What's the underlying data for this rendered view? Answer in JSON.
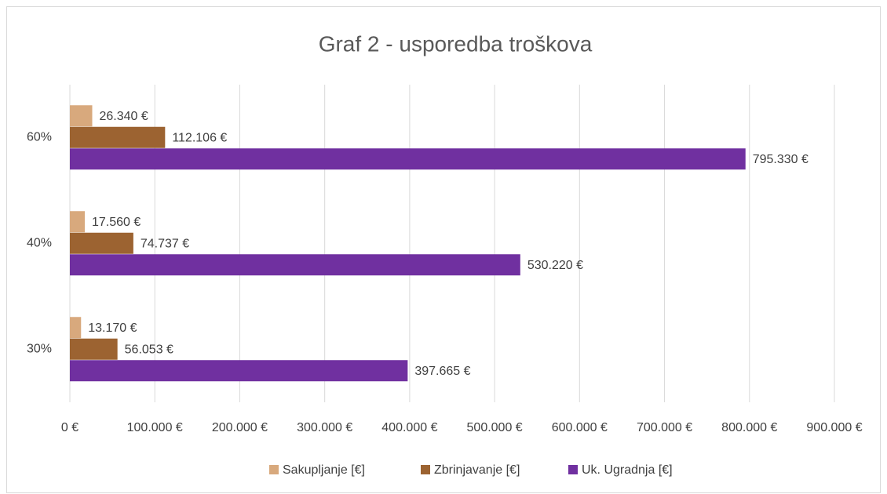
{
  "chart_data": {
    "type": "bar",
    "orientation": "horizontal",
    "title": "Graf 2 - usporedba troškova",
    "categories": [
      "30%",
      "40%",
      "60%"
    ],
    "series": [
      {
        "name": "Sakupljanje [€]",
        "color": "#d8a97d",
        "values": [
          13170,
          17560,
          26340
        ],
        "value_labels": [
          "13.170 €",
          "17.560 €",
          "26.340 €"
        ]
      },
      {
        "name": "Zbrinjavanje [€]",
        "color": "#9c6331",
        "values": [
          56053,
          74737,
          112106
        ],
        "value_labels": [
          "56.053 €",
          "74.737 €",
          "112.106 €"
        ]
      },
      {
        "name": "Uk. Ugradnja [€]",
        "color": "#7030a0",
        "values": [
          397665,
          530220,
          795330
        ],
        "value_labels": [
          "397.665 €",
          "530.220 €",
          "795.330 €"
        ]
      }
    ],
    "xlim": [
      0,
      900000
    ],
    "xticks": [
      {
        "value": 0,
        "label": "0 €"
      },
      {
        "value": 100000,
        "label": "100.000 €"
      },
      {
        "value": 200000,
        "label": "200.000 €"
      },
      {
        "value": 300000,
        "label": "300.000 €"
      },
      {
        "value": 400000,
        "label": "400.000 €"
      },
      {
        "value": 500000,
        "label": "500.000 €"
      },
      {
        "value": 600000,
        "label": "600.000 €"
      },
      {
        "value": 700000,
        "label": "700.000 €"
      },
      {
        "value": 800000,
        "label": "800.000 €"
      },
      {
        "value": 900000,
        "label": "900.000 €"
      }
    ],
    "grid": true,
    "legend": "bottom"
  }
}
